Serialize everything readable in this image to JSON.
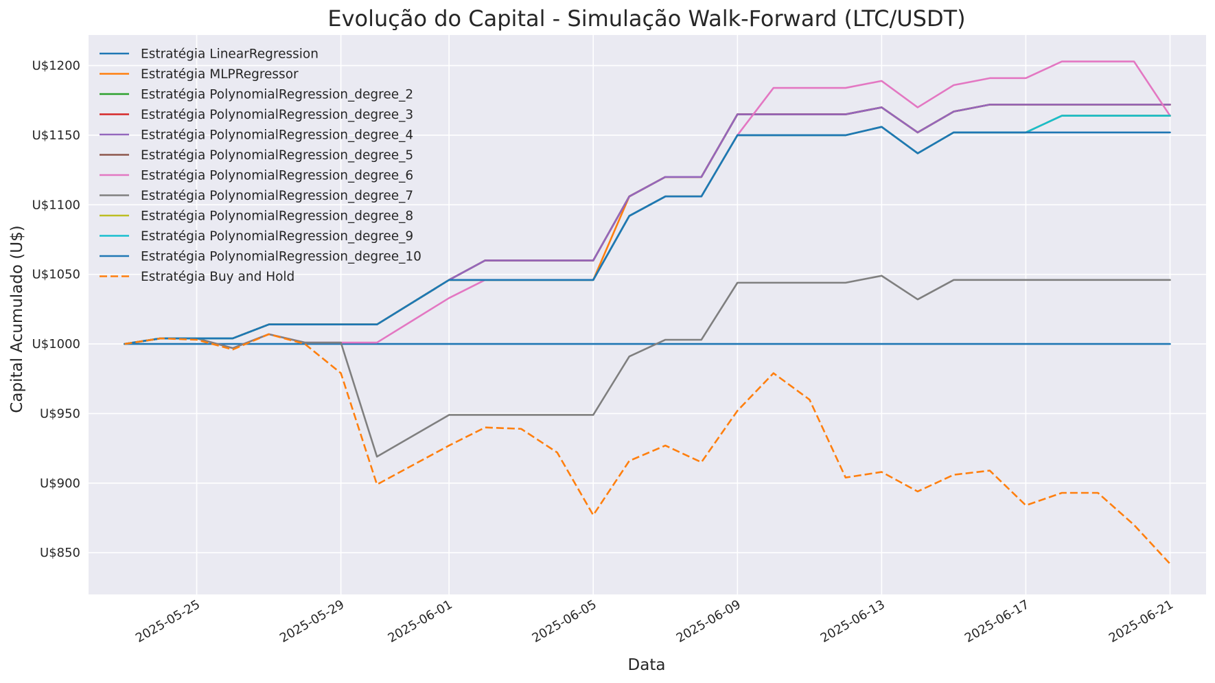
{
  "chart_data": {
    "type": "line",
    "title": "Evolução do Capital - Simulação Walk-Forward (LTC/USDT)",
    "xlabel": "Data",
    "ylabel": "Capital Acumulado (U$)",
    "ylim": [
      820,
      1222
    ],
    "y_ticks": [
      850,
      900,
      950,
      1000,
      1050,
      1100,
      1150,
      1200
    ],
    "y_tick_labels": [
      "U$850",
      "U$900",
      "U$950",
      "U$1000",
      "U$1050",
      "U$1100",
      "U$1150",
      "U$1200"
    ],
    "x_range": [
      "2025-05-22",
      "2025-06-22"
    ],
    "x_ticks": [
      "2025-05-25",
      "2025-05-29",
      "2025-06-01",
      "2025-06-05",
      "2025-06-09",
      "2025-06-13",
      "2025-06-17",
      "2025-06-21"
    ],
    "grid": true,
    "legend_position": "upper-left",
    "dates": [
      "2025-05-23",
      "2025-05-24",
      "2025-05-25",
      "2025-05-26",
      "2025-05-27",
      "2025-05-28",
      "2025-05-29",
      "2025-05-30",
      "2025-05-31",
      "2025-06-01",
      "2025-06-02",
      "2025-06-03",
      "2025-06-04",
      "2025-06-05",
      "2025-06-06",
      "2025-06-07",
      "2025-06-08",
      "2025-06-09",
      "2025-06-10",
      "2025-06-11",
      "2025-06-12",
      "2025-06-13",
      "2025-06-14",
      "2025-06-15",
      "2025-06-16",
      "2025-06-17",
      "2025-06-18",
      "2025-06-19",
      "2025-06-20",
      "2025-06-21"
    ],
    "series": [
      {
        "name": "Estratégia LinearRegression",
        "color": "#1f77b4",
        "dash": "solid",
        "values": [
          1000,
          1000,
          1000,
          1000,
          1000,
          1000,
          1000,
          1000,
          1000,
          1000,
          1000,
          1000,
          1000,
          1000,
          1000,
          1000,
          1000,
          1000,
          1000,
          1000,
          1000,
          1000,
          1000,
          1000,
          1000,
          1000,
          1000,
          1000,
          1000,
          1000
        ]
      },
      {
        "name": "Estratégia MLPRegressor",
        "color": "#ff7f0e",
        "dash": "solid",
        "values": [
          1000,
          1004,
          1004,
          1004,
          1014,
          1014,
          1014,
          1014,
          1030,
          1046,
          1046,
          1046,
          1046,
          1046,
          1106,
          1120,
          1120,
          1165,
          1165,
          1165,
          1165,
          1170,
          1152,
          1167,
          1172,
          1172,
          1172,
          1172,
          1172,
          1172
        ]
      },
      {
        "name": "Estratégia PolynomialRegression_degree_2",
        "color": "#2ca02c",
        "dash": "solid",
        "values": [
          1000,
          1004,
          1004,
          1004,
          1014,
          1014,
          1014,
          1014,
          1030,
          1046,
          1060,
          1060,
          1060,
          1060,
          1106,
          1120,
          1120,
          1165,
          1165,
          1165,
          1165,
          1170,
          1152,
          1167,
          1172,
          1172,
          1172,
          1172,
          1172,
          1172
        ]
      },
      {
        "name": "Estratégia PolynomialRegression_degree_3",
        "color": "#d62728",
        "dash": "solid",
        "values": [
          1000,
          1004,
          1004,
          1004,
          1014,
          1014,
          1014,
          1014,
          1030,
          1046,
          1060,
          1060,
          1060,
          1060,
          1106,
          1120,
          1120,
          1165,
          1165,
          1165,
          1165,
          1170,
          1152,
          1167,
          1172,
          1172,
          1172,
          1172,
          1172,
          1172
        ]
      },
      {
        "name": "Estratégia PolynomialRegression_degree_4",
        "color": "#9467bd",
        "dash": "solid",
        "values": [
          1000,
          1004,
          1004,
          1004,
          1014,
          1014,
          1014,
          1014,
          1030,
          1046,
          1060,
          1060,
          1060,
          1060,
          1106,
          1120,
          1120,
          1165,
          1165,
          1165,
          1165,
          1170,
          1152,
          1167,
          1172,
          1172,
          1172,
          1172,
          1172,
          1172
        ]
      },
      {
        "name": "Estratégia PolynomialRegression_degree_5",
        "color": "#8c564b",
        "dash": "solid",
        "values": [
          1000,
          1004,
          1004,
          1004,
          1014,
          1014,
          1014,
          1014,
          1030,
          1046,
          1046,
          1046,
          1046,
          1046,
          1092,
          1106,
          1106,
          1150,
          1150,
          1150,
          1150,
          1156,
          1137,
          1152,
          1152,
          1152,
          1164,
          1164,
          1164,
          1164
        ]
      },
      {
        "name": "Estratégia PolynomialRegression_degree_6",
        "color": "#e377c2",
        "dash": "solid",
        "values": [
          1000,
          1004,
          1004,
          997,
          1007,
          1001,
          1001,
          1001,
          1017,
          1033,
          1046,
          1046,
          1046,
          1046,
          1092,
          1106,
          1106,
          1150,
          1184,
          1184,
          1184,
          1189,
          1170,
          1186,
          1191,
          1191,
          1203,
          1203,
          1203,
          1164
        ]
      },
      {
        "name": "Estratégia PolynomialRegression_degree_7",
        "color": "#7f7f7f",
        "dash": "solid",
        "values": [
          1000,
          1004,
          1004,
          997,
          1007,
          1001,
          1001,
          919,
          934,
          949,
          949,
          949,
          949,
          949,
          991,
          1003,
          1003,
          1044,
          1044,
          1044,
          1044,
          1049,
          1032,
          1046,
          1046,
          1046,
          1046,
          1046,
          1046,
          1046
        ]
      },
      {
        "name": "Estratégia PolynomialRegression_degree_8",
        "color": "#bcbd22",
        "dash": "solid",
        "values": [
          1000,
          1004,
          1004,
          1004,
          1014,
          1014,
          1014,
          1014,
          1030,
          1046,
          1046,
          1046,
          1046,
          1046,
          1092,
          1106,
          1106,
          1150,
          1150,
          1150,
          1150,
          1156,
          1137,
          1152,
          1152,
          1152,
          1164,
          1164,
          1164,
          1164
        ]
      },
      {
        "name": "Estratégia PolynomialRegression_degree_9",
        "color": "#17becf",
        "dash": "solid",
        "values": [
          1000,
          1004,
          1004,
          1004,
          1014,
          1014,
          1014,
          1014,
          1030,
          1046,
          1046,
          1046,
          1046,
          1046,
          1092,
          1106,
          1106,
          1150,
          1150,
          1150,
          1150,
          1156,
          1137,
          1152,
          1152,
          1152,
          1164,
          1164,
          1164,
          1164
        ]
      },
      {
        "name": "Estratégia PolynomialRegression_degree_10",
        "color": "#1f77b4",
        "dash": "solid",
        "values": [
          1000,
          1004,
          1004,
          1004,
          1014,
          1014,
          1014,
          1014,
          1030,
          1046,
          1046,
          1046,
          1046,
          1046,
          1092,
          1106,
          1106,
          1150,
          1150,
          1150,
          1150,
          1156,
          1137,
          1152,
          1152,
          1152,
          1152,
          1152,
          1152,
          1152
        ]
      },
      {
        "name": "Estratégia Buy and Hold",
        "color": "#ff7f0e",
        "dash": "dashed",
        "values": [
          1000,
          1004,
          1003,
          996,
          1007,
          1000,
          979,
          899,
          913,
          927,
          940,
          939,
          922,
          877,
          916,
          927,
          915,
          952,
          979,
          960,
          904,
          908,
          894,
          906,
          909,
          884,
          893,
          893,
          870,
          842
        ]
      }
    ]
  }
}
